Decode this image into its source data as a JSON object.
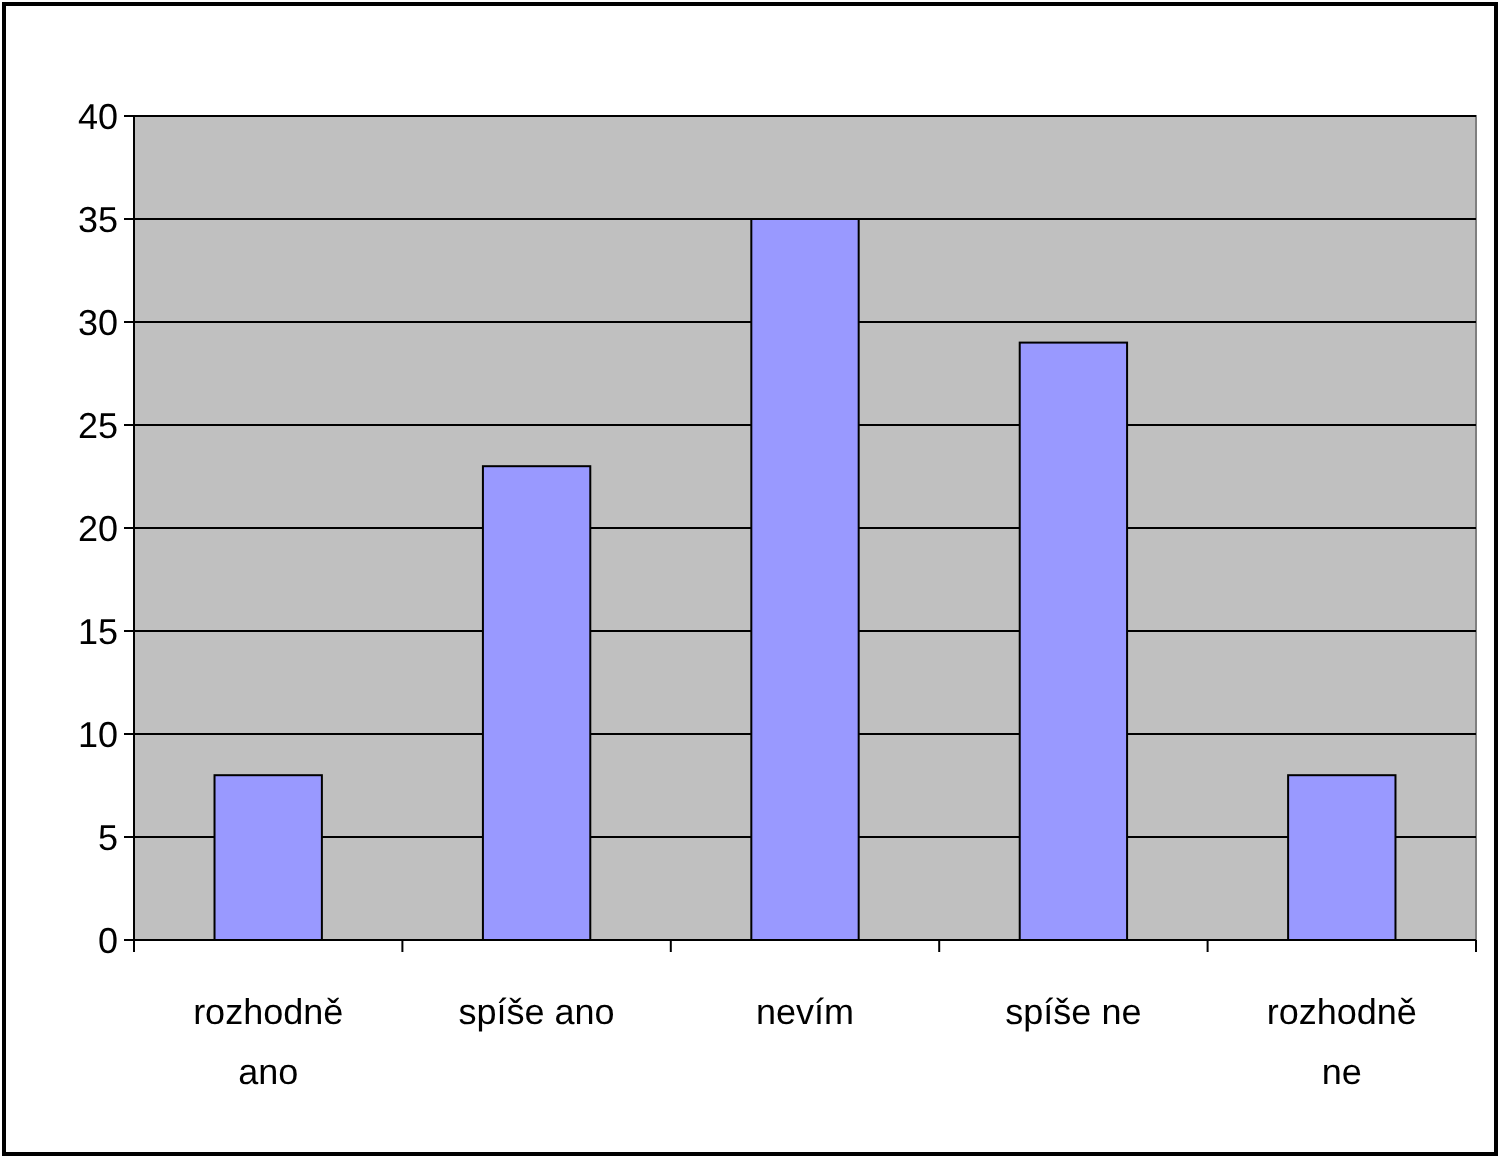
{
  "chart_data": {
    "type": "bar",
    "categories": [
      "rozhodně ano",
      "spíše ano",
      "nevím",
      "spíše ne",
      "rozhodně ne"
    ],
    "values": [
      8,
      23,
      35,
      29,
      8
    ],
    "color": "#9999ff",
    "ylim": [
      0,
      40
    ],
    "yticks": [
      0,
      5,
      10,
      15,
      20,
      25,
      30,
      35,
      40
    ],
    "grid": "y"
  }
}
